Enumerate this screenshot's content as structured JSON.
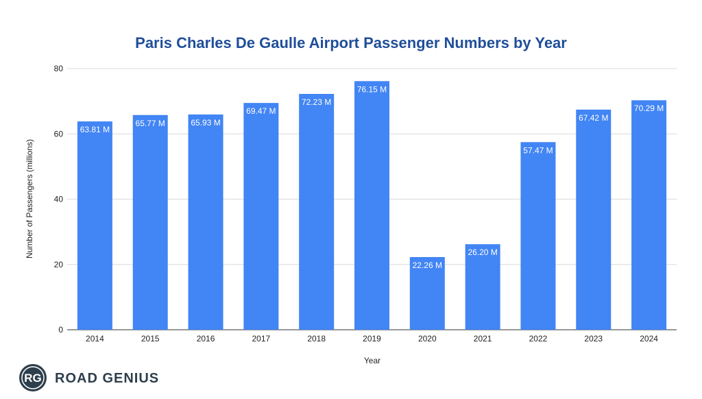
{
  "chart_data": {
    "type": "bar",
    "title": "Paris Charles De Gaulle Airport Passenger Numbers by Year",
    "xlabel": "Year",
    "ylabel": "Number of Passengers (millions)",
    "categories": [
      "2014",
      "2015",
      "2016",
      "2017",
      "2018",
      "2019",
      "2020",
      "2021",
      "2022",
      "2023",
      "2024"
    ],
    "values": [
      63.81,
      65.77,
      65.93,
      69.47,
      72.23,
      76.15,
      22.26,
      26.2,
      57.47,
      67.42,
      70.29
    ],
    "data_labels": [
      "63.81 M",
      "65.77 M",
      "65.93 M",
      "69.47 M",
      "72.23 M",
      "76.15 M",
      "22.26 M",
      "26.20 M",
      "57.47 M",
      "67.42 M",
      "70.29 M"
    ],
    "ylim": [
      0,
      80
    ],
    "yticks": [
      "0",
      "20",
      "40",
      "60",
      "80"
    ],
    "grid": true,
    "bar_color": "#4285f4",
    "title_color": "#1f4e9a"
  },
  "brand": {
    "logo_initials": "RG",
    "name": "ROAD GENIUS"
  }
}
